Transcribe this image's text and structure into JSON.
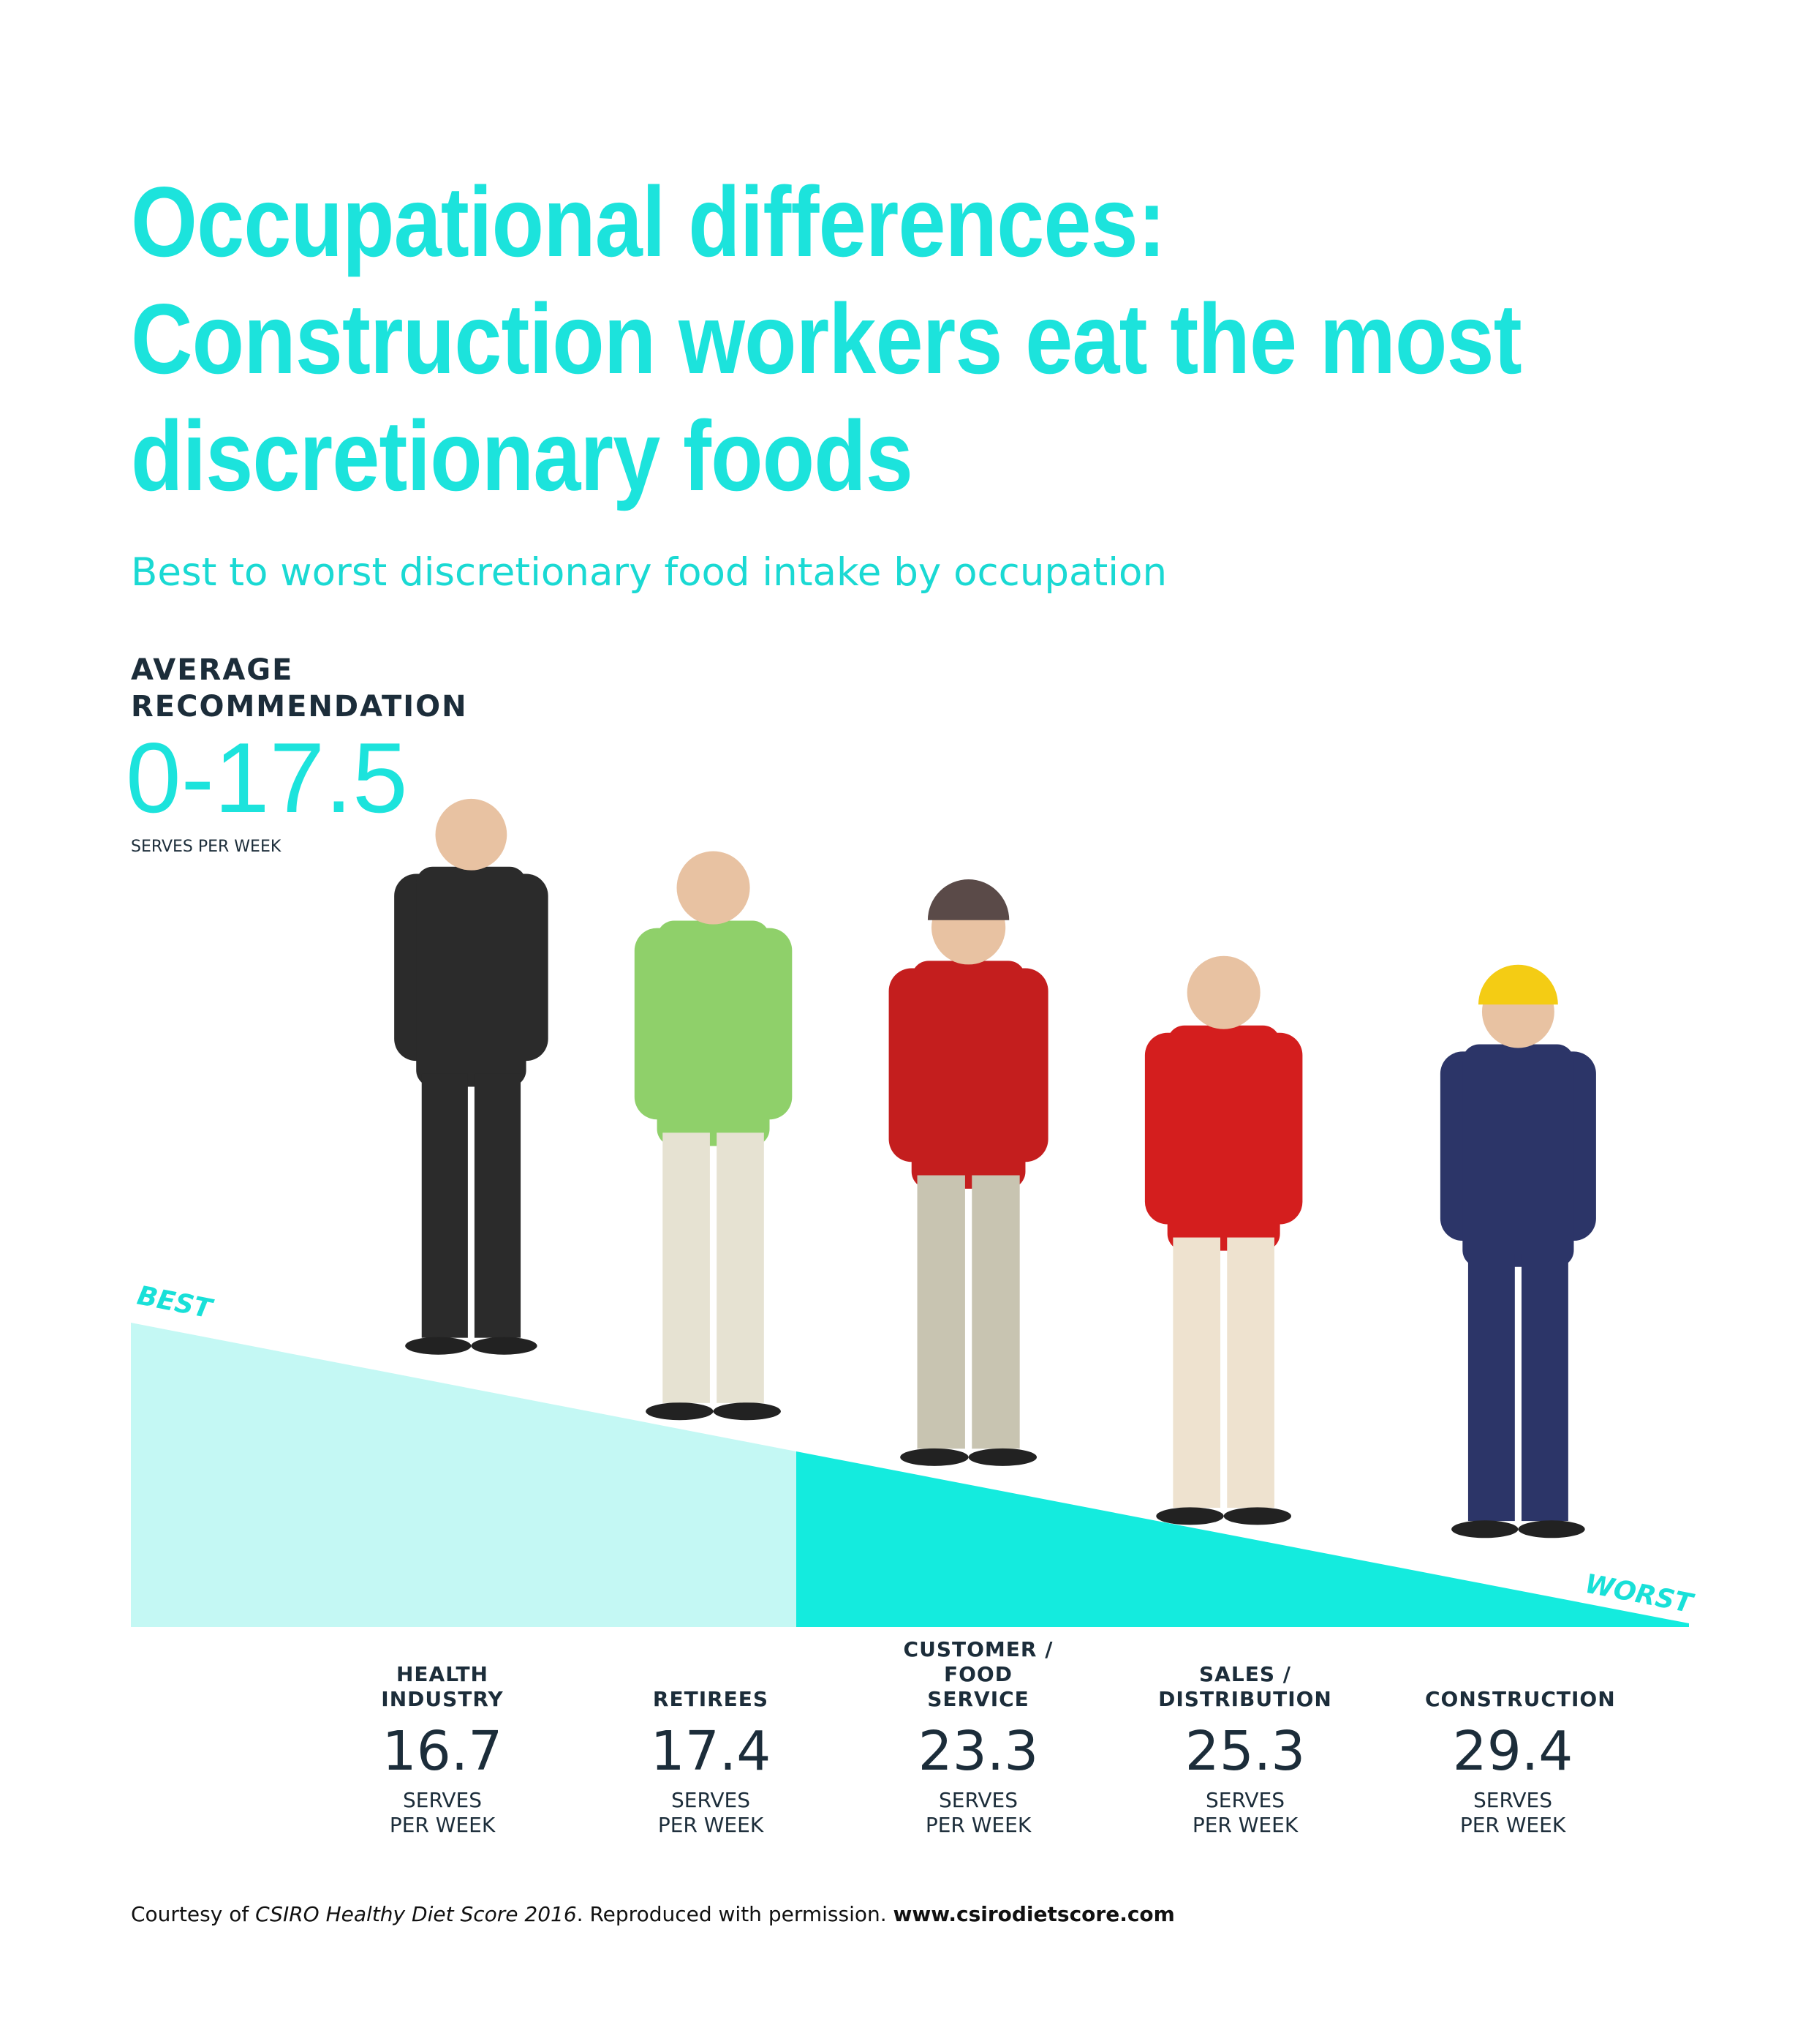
{
  "header": {
    "title_lines": [
      "Occupational differences:",
      "Construction workers eat the most",
      "discretionary foods"
    ],
    "subtitle": "Best to worst discretionary food intake by occupation"
  },
  "recommendation": {
    "label_lines": [
      "AVERAGE",
      "RECOMMENDATION"
    ],
    "value": "0-17.5",
    "unit": "SERVES PER WEEK"
  },
  "scale": {
    "best": "BEST",
    "worst": "WORST"
  },
  "occupations": [
    {
      "name": "HEALTH INDUSTRY",
      "value": 16.7,
      "unit": "SERVES PER WEEK"
    },
    {
      "name": "RETIREES",
      "value": 17.4,
      "unit": "SERVES PER WEEK"
    },
    {
      "name": "CUSTOMER / FOOD SERVICE",
      "value": 23.3,
      "unit": "SERVES PER WEEK"
    },
    {
      "name": "SALES / DISTRIBUTION",
      "value": 25.3,
      "unit": "SERVES PER WEEK"
    },
    {
      "name": "CONSTRUCTION",
      "value": 29.4,
      "unit": "SERVES PER WEEK"
    }
  ],
  "footer": {
    "prefix": "Courtesy of",
    "source": "CSIRO Healthy Diet Score 2016",
    "note": ". Reproduced with permission.",
    "url": "www.csirodietscore.com"
  }
}
